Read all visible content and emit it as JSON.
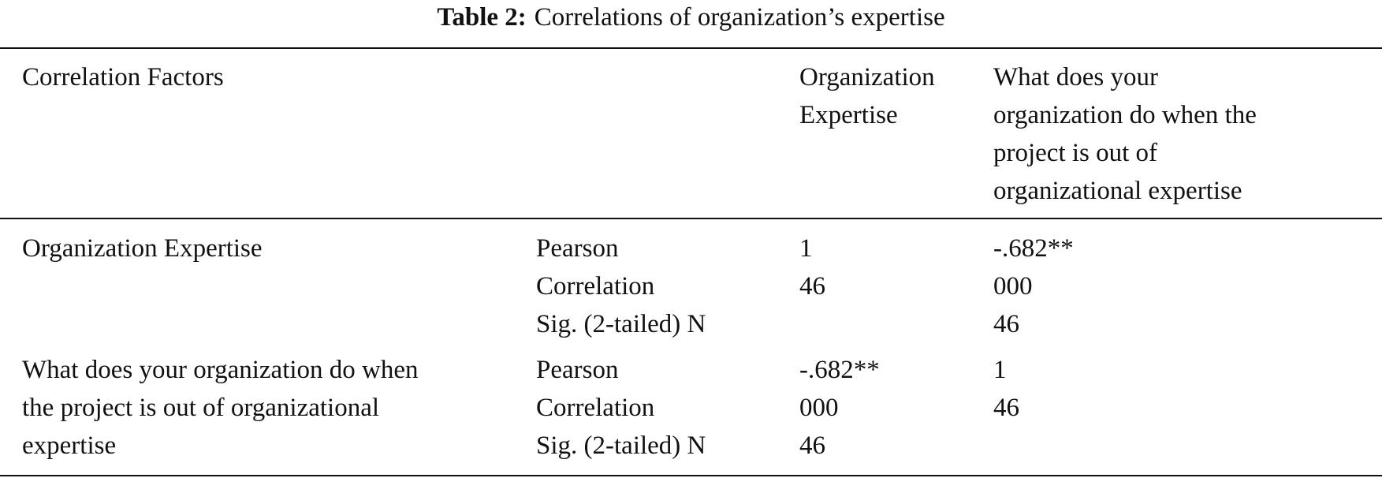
{
  "caption": {
    "label": "Table 2:",
    "title": "Correlations of organization’s expertise"
  },
  "table": {
    "header": [
      [
        "Correlation Factors"
      ],
      [],
      [
        "Organization",
        "Expertise"
      ],
      [
        "What does your",
        "organization do when the",
        "project is out of",
        "organizational expertise"
      ]
    ],
    "rows": [
      [
        [
          "Organization Expertise"
        ],
        [
          "Pearson",
          "Correlation",
          "Sig. (2-tailed) N"
        ],
        [
          "1",
          "46"
        ],
        [
          "-.682**",
          "000",
          "46"
        ]
      ],
      [
        [
          "What does your organization do when",
          "the project is out of organizational",
          "expertise"
        ],
        [
          "Pearson",
          "Correlation",
          "Sig. (2-tailed) N"
        ],
        [
          "-.682**",
          "000",
          "46"
        ],
        [
          "1",
          "46"
        ]
      ]
    ]
  }
}
